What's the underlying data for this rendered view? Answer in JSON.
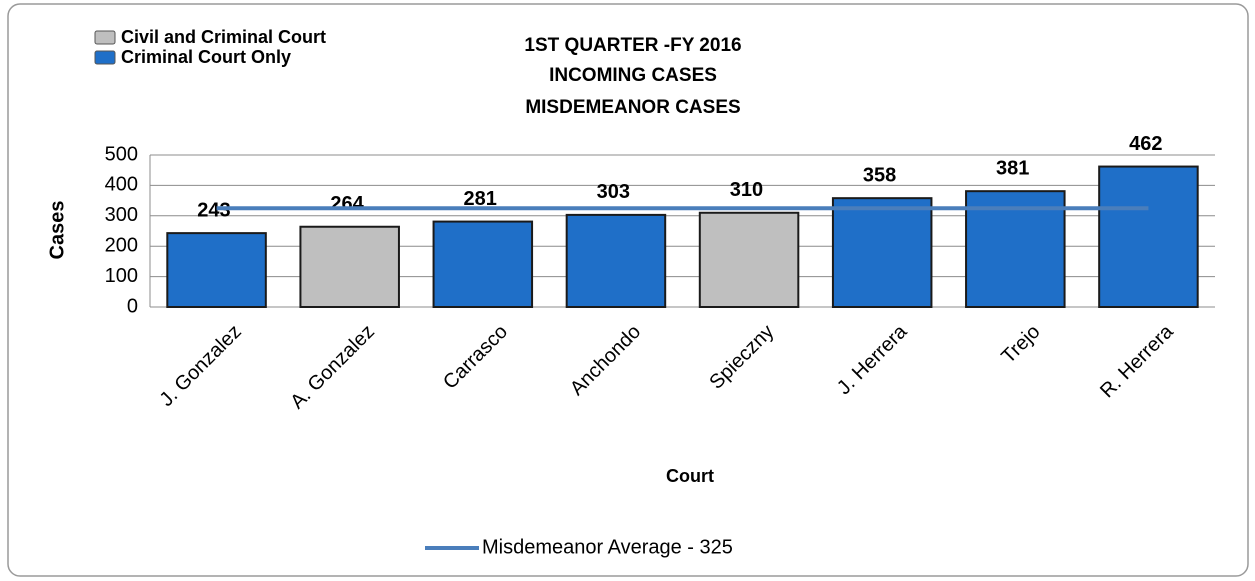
{
  "chart_data": {
    "type": "bar",
    "title": [
      "1ST QUARTER -FY 2016",
      "INCOMING CASES",
      "MISDEMEANOR CASES"
    ],
    "x_label": "Court",
    "y_label": "Cases",
    "categories": [
      "J. Gonzalez",
      "A. Gonzalez",
      "Carrasco",
      "Anchondo",
      "Spieczny",
      "J. Herrera",
      "Trejo",
      "R. Herrera"
    ],
    "values": [
      243,
      264,
      281,
      303,
      310,
      358,
      381,
      462
    ],
    "colors": [
      "#1f6fc8",
      "#bfbfbf",
      "#1f6fc8",
      "#1f6fc8",
      "#bfbfbf",
      "#1f6fc8",
      "#1f6fc8",
      "#1f6fc8"
    ],
    "legend": [
      {
        "name": "Civil and Criminal Court",
        "color": "#bfbfbf"
      },
      {
        "name": "Criminal Court Only",
        "color": "#1f6fc8"
      }
    ],
    "average": {
      "name": "Misdemeanor Average - 325",
      "value": 325,
      "color": "#4a7ebb"
    },
    "ylim": [
      0,
      500
    ],
    "yticks": [
      0,
      100,
      200,
      300,
      400,
      500
    ],
    "grid": true
  }
}
